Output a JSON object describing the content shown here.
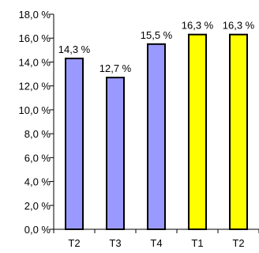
{
  "chart_data": {
    "type": "bar",
    "categories": [
      "T2",
      "T3",
      "T4",
      "T1",
      "T2"
    ],
    "values": [
      14.3,
      12.7,
      15.5,
      16.3,
      16.3
    ],
    "value_labels": [
      "14,3 %",
      "12,7 %",
      "15,5 %",
      "16,3 %",
      "16,3 %"
    ],
    "bar_colors": [
      "#9999ff",
      "#9999ff",
      "#9999ff",
      "#ffff00",
      "#ffff00"
    ],
    "ylim": [
      0,
      18
    ],
    "ytick_values": [
      0,
      2,
      4,
      6,
      8,
      10,
      12,
      14,
      16,
      18
    ],
    "ytick_labels": [
      "0,0 %",
      "2,0 %",
      "4,0 %",
      "6,0 %",
      "8,0 %",
      "10,0 %",
      "12,0 %",
      "14,0 %",
      "16,0 %",
      "18,0 %"
    ],
    "title": "",
    "xlabel": "",
    "ylabel": "",
    "grid": false,
    "legend": "none"
  }
}
